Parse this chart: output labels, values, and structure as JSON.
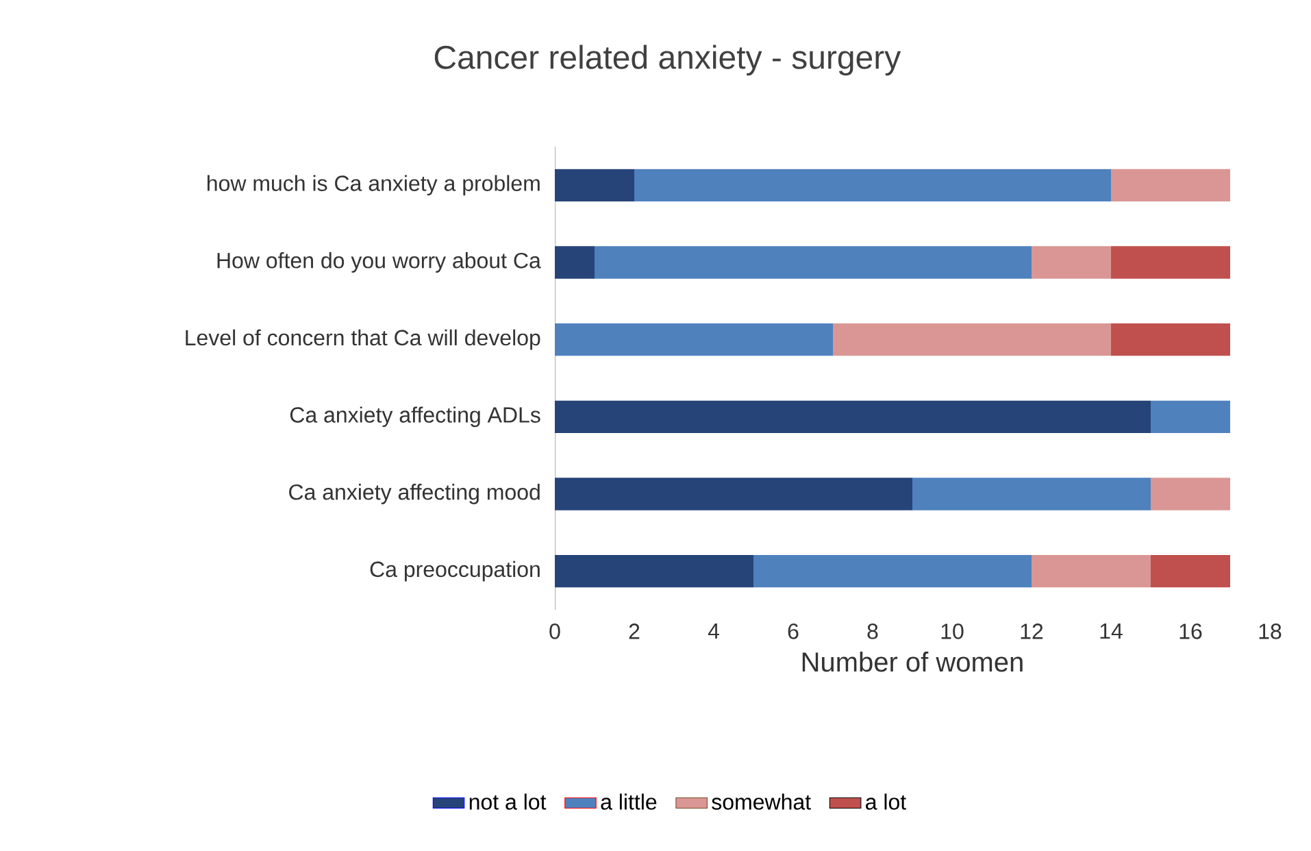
{
  "chart_data": {
    "type": "bar",
    "orientation": "horizontal",
    "stacked": true,
    "title": "Cancer related anxiety - surgery",
    "xlabel": "Number of women",
    "categories": [
      "how much is Ca anxiety a problem",
      "How often do you worry about Ca",
      "Level of concern that Ca will develop",
      "Ca anxiety affecting ADLs",
      "Ca anxiety affecting mood",
      "Ca preoccupation"
    ],
    "series": [
      {
        "name": "not a lot",
        "color": "#264478",
        "values": [
          2,
          1,
          0,
          15,
          9,
          5
        ]
      },
      {
        "name": "a little",
        "color": "#4f81bd",
        "values": [
          12,
          11,
          7,
          2,
          6,
          7
        ]
      },
      {
        "name": "somewhat",
        "color": "#d99694",
        "values": [
          3,
          2,
          7,
          0,
          2,
          3
        ]
      },
      {
        "name": "a lot",
        "color": "#c0504d",
        "values": [
          0,
          3,
          3,
          0,
          0,
          2
        ]
      }
    ],
    "xlim": [
      0,
      18
    ],
    "xticks": [
      0,
      2,
      4,
      6,
      8,
      10,
      12,
      14,
      16,
      18
    ],
    "legend": "bottom"
  }
}
